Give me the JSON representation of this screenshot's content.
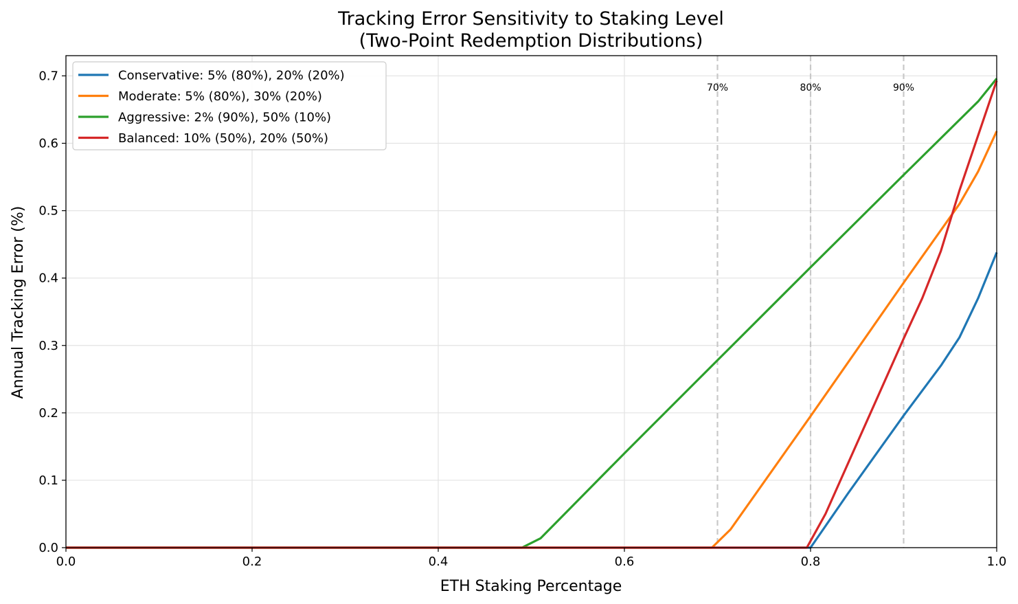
{
  "chart_data": {
    "type": "line",
    "title": "Tracking Error Sensitivity to Staking Level",
    "subtitle": "(Two-Point Redemption Distributions)",
    "xlabel": "ETH Staking Percentage",
    "ylabel": "Annual Tracking Error (%)",
    "xlim": [
      0.0,
      1.0
    ],
    "ylim": [
      0.0,
      0.73
    ],
    "xticks": [
      "0.0",
      "0.2",
      "0.4",
      "0.6",
      "0.8",
      "1.0"
    ],
    "yticks": [
      "0.0",
      "0.1",
      "0.2",
      "0.3",
      "0.4",
      "0.5",
      "0.6",
      "0.7"
    ],
    "grid": true,
    "legend_position": "upper-left",
    "series": [
      {
        "name": "Conservative: 5% (80%), 20% (20%)",
        "color": "#1f77b4",
        "points": [
          [
            0.0,
            0.0
          ],
          [
            0.8,
            0.0
          ],
          [
            0.816,
            0.032
          ],
          [
            0.84,
            0.08
          ],
          [
            0.9,
            0.196
          ],
          [
            0.94,
            0.27
          ],
          [
            0.96,
            0.312
          ],
          [
            0.98,
            0.37
          ],
          [
            1.0,
            0.438
          ]
        ]
      },
      {
        "name": "Moderate: 5% (80%), 30% (20%)",
        "color": "#ff7f0e",
        "points": [
          [
            0.0,
            0.0
          ],
          [
            0.694,
            0.0
          ],
          [
            0.714,
            0.027
          ],
          [
            0.8,
            0.195
          ],
          [
            0.9,
            0.393
          ],
          [
            0.96,
            0.51
          ],
          [
            0.98,
            0.558
          ],
          [
            1.0,
            0.618
          ]
        ]
      },
      {
        "name": "Aggressive: 2% (90%), 50% (10%)",
        "color": "#2ca02c",
        "points": [
          [
            0.0,
            0.0
          ],
          [
            0.49,
            0.0
          ],
          [
            0.51,
            0.014
          ],
          [
            0.6,
            0.14
          ],
          [
            0.7,
            0.278
          ],
          [
            0.8,
            0.416
          ],
          [
            0.9,
            0.553
          ],
          [
            0.98,
            0.662
          ],
          [
            1.0,
            0.696
          ]
        ]
      },
      {
        "name": "Balanced: 10% (50%), 20% (50%)",
        "color": "#d62728",
        "points": [
          [
            0.0,
            0.0
          ],
          [
            0.796,
            0.0
          ],
          [
            0.816,
            0.05
          ],
          [
            0.9,
            0.31
          ],
          [
            0.92,
            0.37
          ],
          [
            0.94,
            0.44
          ],
          [
            0.96,
            0.53
          ],
          [
            1.0,
            0.693
          ]
        ]
      }
    ],
    "reference_lines": [
      {
        "x": 0.7,
        "label": "70%"
      },
      {
        "x": 0.8,
        "label": "80%"
      },
      {
        "x": 0.9,
        "label": "90%"
      }
    ]
  }
}
